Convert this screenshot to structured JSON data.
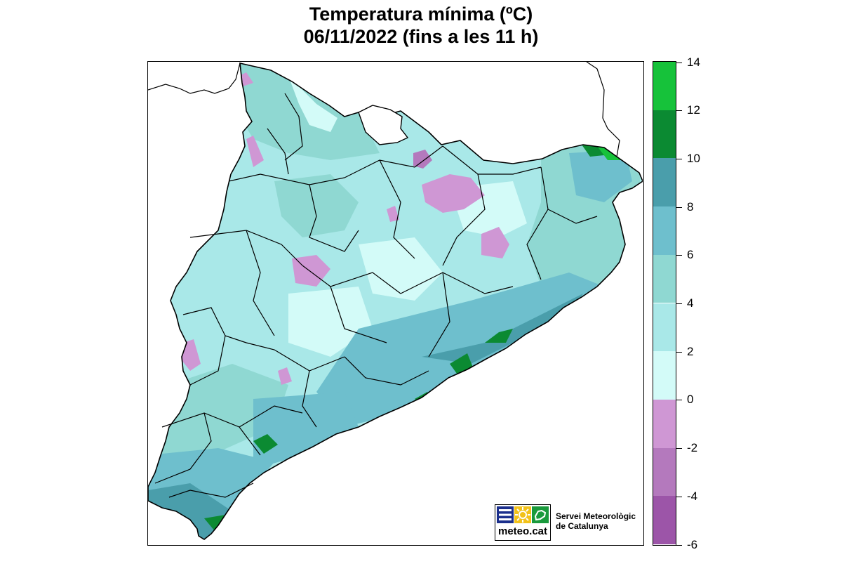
{
  "title": {
    "line1": "Temperatura mínima (ºC)",
    "line2": "06/11/2022 (fins a les 11 h)"
  },
  "legend": {
    "ticks": [
      "14",
      "12",
      "10",
      "8",
      "6",
      "4",
      "2",
      "0",
      "-2",
      "-4",
      "-6"
    ],
    "bands": [
      {
        "from": 12,
        "to": 14,
        "color": "#16c23a"
      },
      {
        "from": 10,
        "to": 12,
        "color": "#0b8a32"
      },
      {
        "from": 8,
        "to": 10,
        "color": "#4a9eab"
      },
      {
        "from": 6,
        "to": 8,
        "color": "#6ebfcd"
      },
      {
        "from": 4,
        "to": 6,
        "color": "#8fd8d2"
      },
      {
        "from": 2,
        "to": 4,
        "color": "#a9e8e8"
      },
      {
        "from": 0,
        "to": 2,
        "color": "#d3fbf8"
      },
      {
        "from": -2,
        "to": 0,
        "color": "#cf97d4"
      },
      {
        "from": -4,
        "to": -2,
        "color": "#b479bd"
      },
      {
        "from": -6,
        "to": -4,
        "color": "#9c55a8"
      }
    ]
  },
  "logo": {
    "word": "meteo.cat",
    "service_line1": "Servei Meteorològic",
    "service_line2": "de Catalunya"
  }
}
